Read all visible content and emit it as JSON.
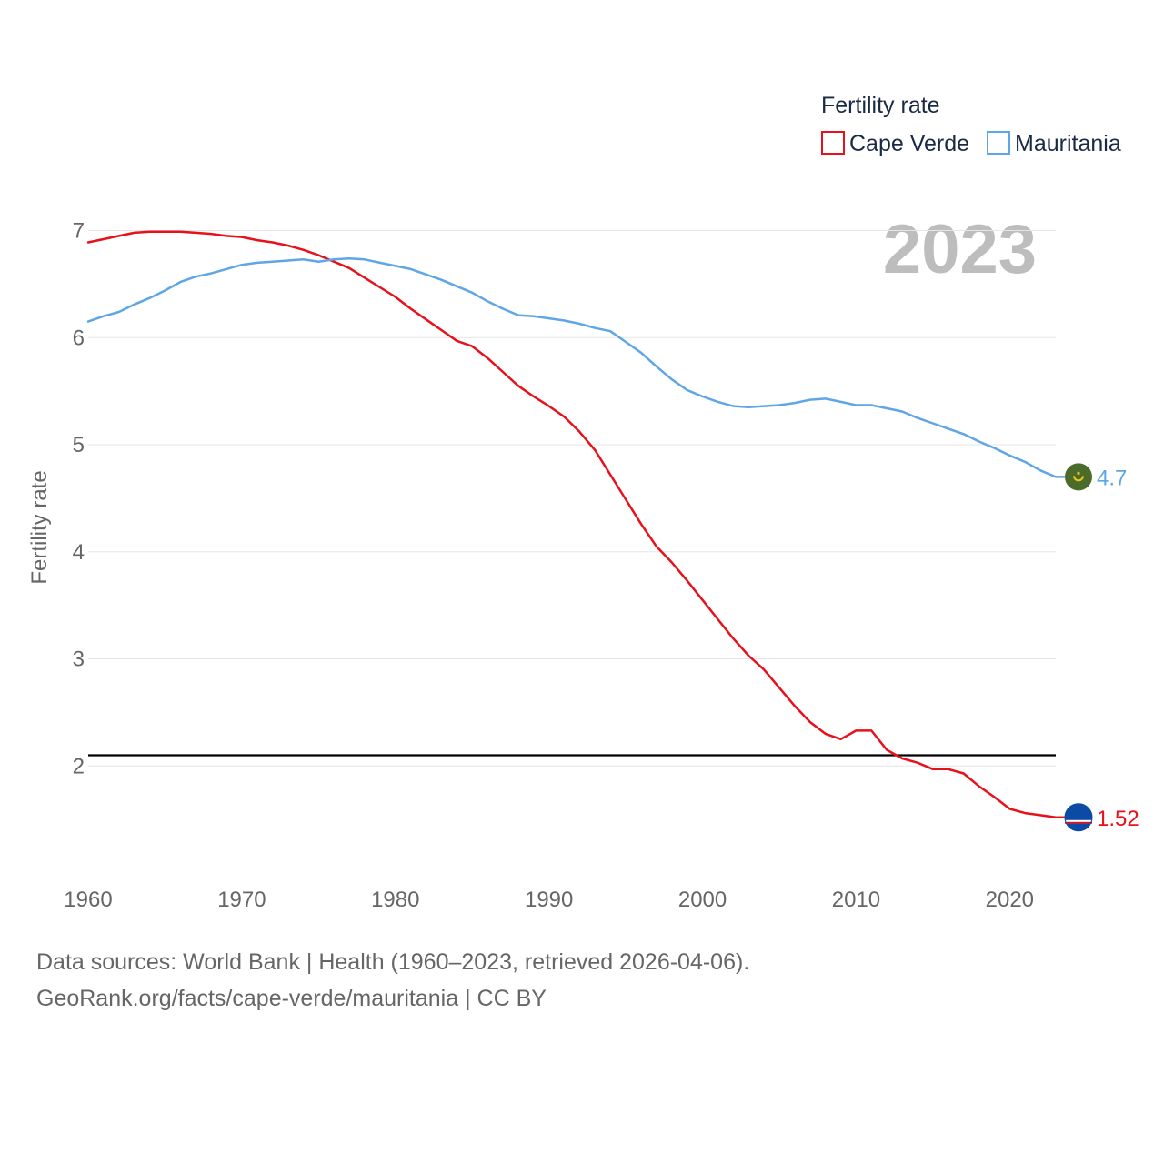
{
  "chart_data": {
    "type": "line",
    "title": "Fertility rate",
    "xlabel": "",
    "ylabel": "Fertility rate",
    "year_label": "2023",
    "xlim": [
      1960,
      2023
    ],
    "ylim": [
      1.0,
      7.2
    ],
    "x_ticks": [
      1960,
      1970,
      1980,
      1990,
      2000,
      2010,
      2020
    ],
    "y_ticks": [
      2,
      3,
      4,
      5,
      6,
      7
    ],
    "reference_line": 2.1,
    "x": [
      1960,
      1961,
      1962,
      1963,
      1964,
      1965,
      1966,
      1967,
      1968,
      1969,
      1970,
      1971,
      1972,
      1973,
      1974,
      1975,
      1976,
      1977,
      1978,
      1979,
      1980,
      1981,
      1982,
      1983,
      1984,
      1985,
      1986,
      1987,
      1988,
      1989,
      1990,
      1991,
      1992,
      1993,
      1994,
      1995,
      1996,
      1997,
      1998,
      1999,
      2000,
      2001,
      2002,
      2003,
      2004,
      2005,
      2006,
      2007,
      2008,
      2009,
      2010,
      2011,
      2012,
      2013,
      2014,
      2015,
      2016,
      2017,
      2018,
      2019,
      2020,
      2021,
      2022,
      2023
    ],
    "series": [
      {
        "name": "Cape Verde",
        "color": "#e8101a",
        "end_label": "1.52",
        "values": [
          6.89,
          6.92,
          6.95,
          6.98,
          6.99,
          6.99,
          6.99,
          6.98,
          6.97,
          6.95,
          6.94,
          6.91,
          6.89,
          6.86,
          6.82,
          6.77,
          6.71,
          6.65,
          6.56,
          6.47,
          6.38,
          6.27,
          6.17,
          6.07,
          5.97,
          5.92,
          5.81,
          5.68,
          5.55,
          5.45,
          5.36,
          5.26,
          5.12,
          4.95,
          4.72,
          4.49,
          4.26,
          4.05,
          3.9,
          3.73,
          3.55,
          3.37,
          3.19,
          3.03,
          2.9,
          2.73,
          2.56,
          2.41,
          2.3,
          2.25,
          2.33,
          2.33,
          2.15,
          2.07,
          2.03,
          1.97,
          1.97,
          1.93,
          1.81,
          1.71,
          1.6,
          1.56,
          1.54,
          1.52
        ]
      },
      {
        "name": "Mauritania",
        "color": "#5fa6e6",
        "end_label": "4.7",
        "values": [
          6.15,
          6.2,
          6.24,
          6.31,
          6.37,
          6.44,
          6.52,
          6.57,
          6.6,
          6.64,
          6.68,
          6.7,
          6.71,
          6.72,
          6.73,
          6.71,
          6.73,
          6.74,
          6.73,
          6.7,
          6.67,
          6.64,
          6.59,
          6.54,
          6.48,
          6.42,
          6.34,
          6.27,
          6.21,
          6.2,
          6.18,
          6.16,
          6.13,
          6.09,
          6.06,
          5.96,
          5.86,
          5.73,
          5.61,
          5.51,
          5.45,
          5.4,
          5.36,
          5.35,
          5.36,
          5.37,
          5.39,
          5.42,
          5.43,
          5.4,
          5.37,
          5.37,
          5.34,
          5.31,
          5.25,
          5.2,
          5.15,
          5.1,
          5.03,
          4.97,
          4.9,
          4.84,
          4.76,
          4.7
        ]
      }
    ]
  },
  "footer": {
    "line1": "Data sources: World Bank | Health (1960–2023, retrieved 2026-04-06).",
    "line2": "GeoRank.org/facts/cape-verde/mauritania | CC BY"
  }
}
